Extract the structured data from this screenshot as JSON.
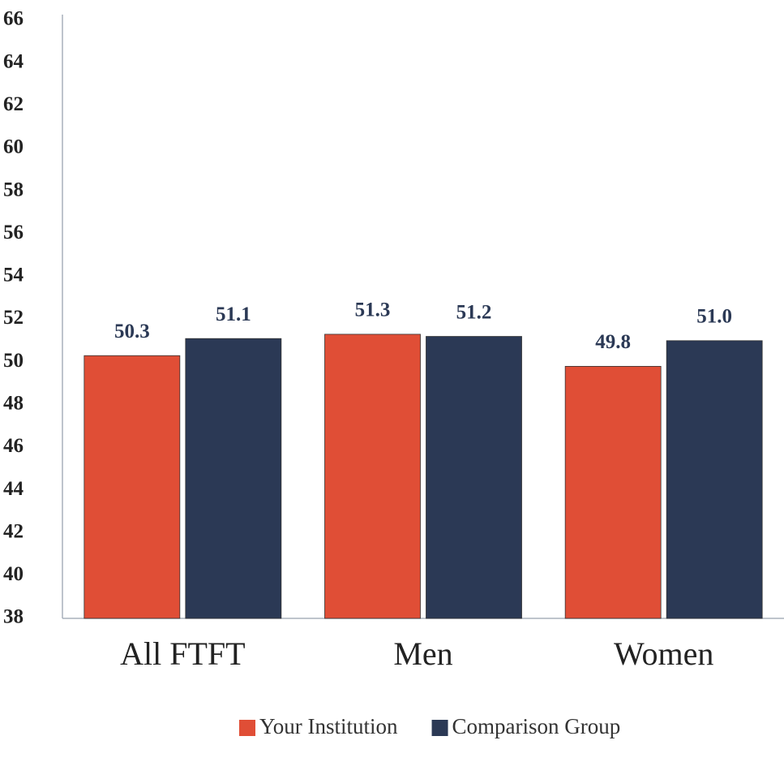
{
  "chart_data": {
    "type": "bar",
    "categories": [
      "All FTFT",
      "Men",
      "Women"
    ],
    "series": [
      {
        "name": "Your Institution",
        "color": "#e04e36",
        "values": [
          50.3,
          51.3,
          49.8
        ],
        "value_labels": [
          "50.3",
          "51.3",
          "49.8"
        ]
      },
      {
        "name": "Comparison Group",
        "color": "#2b3955",
        "values": [
          51.1,
          51.2,
          51.0
        ],
        "value_labels": [
          "51.1",
          "51.2",
          "51.0"
        ]
      }
    ],
    "ylim": [
      38,
      66
    ],
    "yticks": [
      38,
      40,
      42,
      44,
      46,
      48,
      50,
      52,
      54,
      56,
      58,
      60,
      62,
      64,
      66
    ],
    "grid": false,
    "legend": "bottom"
  }
}
